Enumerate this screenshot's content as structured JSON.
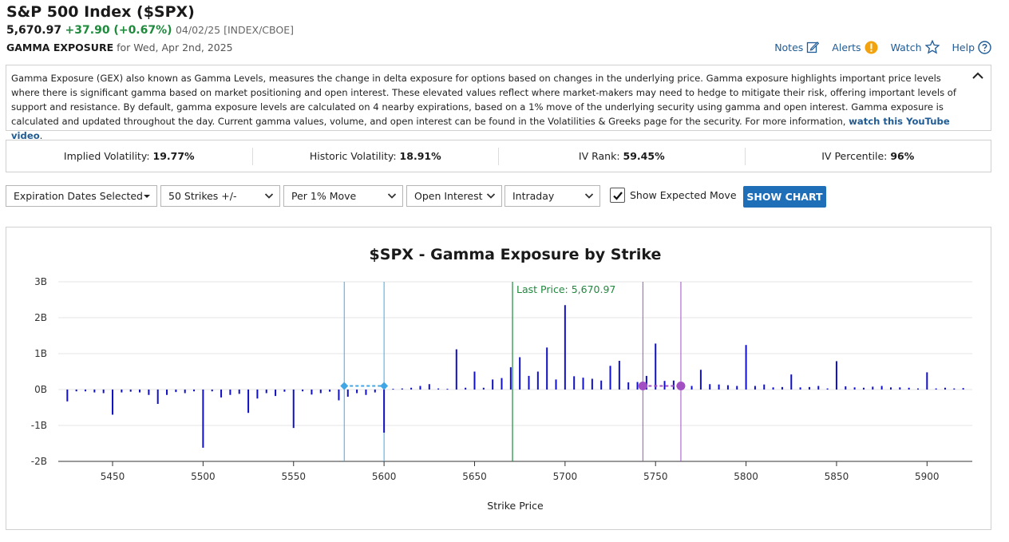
{
  "header": {
    "title": "S&P 500 Index ($SPX)",
    "price": "5,670.97",
    "change": "+37.90 (+0.67%)",
    "date_meta": "04/02/25 [INDEX/CBOE]",
    "section_label": "GAMMA EXPOSURE",
    "section_date": "for Wed, Apr 2nd, 2025"
  },
  "links": {
    "notes": "Notes",
    "alerts": "Alerts",
    "watch": "Watch",
    "help": "Help"
  },
  "description": {
    "text": "Gamma Exposure (GEX) also known as Gamma Levels, measures the change in delta exposure for options based on changes in the underlying price. Gamma exposure highlights important price levels where there is significant gamma based on market positioning and open interest. These elevated values reflect where market-makers may need to hedge to mitigate their risk, offering important levels of support and resistance. By default, gamma exposure levels are calculated on 4 nearby expirations, based on a 1% move of the underlying security using gamma and open interest. Gamma exposure is calculated and updated throughout the day. Current gamma values, volume, and open interest can be found in the Volatilities & Greeks page for the security. For more information, ",
    "link": "watch this YouTube video",
    "end": "."
  },
  "stats": [
    {
      "label": "Implied Volatility:",
      "value": "19.77%"
    },
    {
      "label": "Historic Volatility:",
      "value": "18.91%"
    },
    {
      "label": "IV Rank:",
      "value": "59.45%"
    },
    {
      "label": "IV Percentile:",
      "value": "96%"
    }
  ],
  "controls": {
    "expiration": "Expiration Dates Selected",
    "strikes": "50 Strikes +/-",
    "move": "Per 1% Move",
    "interest": "Open Interest",
    "period": "Intraday",
    "show_expected": "Show Expected Move",
    "show_expected_checked": true,
    "button": "SHOW CHART"
  },
  "chart_data": {
    "type": "bar",
    "title": "$SPX - Gamma Exposure by Strike",
    "xlabel": "Strike Price",
    "ylabel": "",
    "xlim": [
      5420,
      5925
    ],
    "ylim": [
      -2,
      3
    ],
    "xticks": [
      5450,
      5500,
      5550,
      5600,
      5650,
      5700,
      5750,
      5800,
      5850,
      5900
    ],
    "yticks": [
      -2,
      -1,
      0,
      1,
      2,
      3
    ],
    "ytick_labels": [
      "-2B",
      "-1B",
      "0B",
      "1B",
      "2B",
      "3B"
    ],
    "grid": true,
    "bar_color": "#1010c8",
    "last_price": {
      "label": "Last Price: 5,670.97",
      "value": 5670.97,
      "color": "#1e8a3c"
    },
    "expected_move_low": {
      "from": 5578,
      "to": 5600,
      "level": 0.1,
      "color": "#41a6e6"
    },
    "expected_move_high": {
      "from": 5743,
      "to": 5764,
      "level": 0.1,
      "color": "#a24fc4"
    },
    "x": [
      5425,
      5430,
      5435,
      5440,
      5445,
      5450,
      5455,
      5460,
      5465,
      5470,
      5475,
      5480,
      5485,
      5490,
      5495,
      5500,
      5505,
      5510,
      5515,
      5520,
      5525,
      5530,
      5535,
      5540,
      5545,
      5550,
      5555,
      5560,
      5565,
      5570,
      5575,
      5580,
      5585,
      5590,
      5595,
      5600,
      5605,
      5610,
      5615,
      5620,
      5625,
      5630,
      5635,
      5640,
      5645,
      5650,
      5655,
      5660,
      5665,
      5670,
      5675,
      5680,
      5685,
      5690,
      5695,
      5700,
      5705,
      5710,
      5715,
      5720,
      5725,
      5730,
      5735,
      5740,
      5745,
      5750,
      5755,
      5760,
      5765,
      5770,
      5775,
      5780,
      5785,
      5790,
      5795,
      5800,
      5805,
      5810,
      5815,
      5820,
      5825,
      5830,
      5835,
      5840,
      5845,
      5850,
      5855,
      5860,
      5865,
      5870,
      5875,
      5880,
      5885,
      5890,
      5895,
      5900,
      5905,
      5910,
      5915,
      5920
    ],
    "values": [
      -0.33,
      -0.05,
      -0.05,
      -0.08,
      -0.1,
      -0.7,
      -0.08,
      -0.06,
      -0.08,
      -0.15,
      -0.4,
      -0.15,
      -0.07,
      -0.1,
      -0.05,
      -1.62,
      -0.05,
      -0.22,
      -0.15,
      -0.12,
      -0.65,
      -0.25,
      -0.1,
      -0.18,
      -0.06,
      -1.07,
      -0.05,
      -0.14,
      -0.1,
      -0.06,
      -0.3,
      -0.2,
      -0.1,
      -0.15,
      -0.08,
      -1.2,
      0.02,
      0.03,
      0.05,
      0.1,
      0.15,
      0.03,
      0.02,
      1.12,
      0.05,
      0.5,
      0.05,
      0.28,
      0.32,
      0.62,
      0.9,
      0.38,
      0.5,
      1.17,
      0.28,
      2.35,
      0.37,
      0.33,
      0.3,
      0.25,
      0.66,
      0.8,
      0.2,
      0.21,
      0.38,
      1.28,
      0.24,
      0.25,
      0.15,
      0.1,
      0.55,
      0.15,
      0.14,
      0.12,
      0.1,
      1.24,
      0.1,
      0.14,
      0.06,
      0.07,
      0.42,
      0.06,
      0.07,
      0.1,
      0.03,
      0.79,
      0.09,
      0.06,
      0.05,
      0.08,
      0.1,
      0.06,
      0.06,
      0.05,
      0.03,
      0.48,
      0.03,
      0.05,
      0.03,
      0.04
    ]
  }
}
